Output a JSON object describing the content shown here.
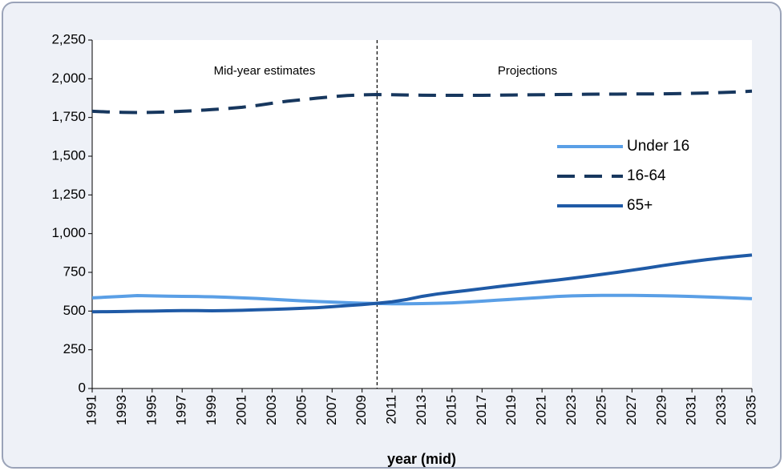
{
  "chart_data": {
    "type": "line",
    "x_label": "year (mid)",
    "annotations": [
      "Mid-year estimates",
      "Projections"
    ],
    "divider_x": 2010,
    "x": [
      1991,
      1992,
      1993,
      1994,
      1995,
      1996,
      1997,
      1998,
      1999,
      2000,
      2001,
      2002,
      2003,
      2004,
      2005,
      2006,
      2007,
      2008,
      2009,
      2010,
      2011,
      2012,
      2013,
      2014,
      2015,
      2016,
      2017,
      2018,
      2019,
      2020,
      2021,
      2022,
      2023,
      2024,
      2025,
      2026,
      2027,
      2028,
      2029,
      2030,
      2031,
      2032,
      2033,
      2034,
      2035
    ],
    "xlim": [
      1991,
      2035
    ],
    "xticks": [
      1991,
      1993,
      1995,
      1997,
      1999,
      2001,
      2003,
      2005,
      2007,
      2009,
      2011,
      2013,
      2015,
      2017,
      2019,
      2021,
      2023,
      2025,
      2027,
      2029,
      2031,
      2033,
      2035
    ],
    "ylim": [
      0,
      2250
    ],
    "yticks": [
      0,
      250,
      500,
      750,
      {
        "value": 1000,
        "label": "1,000"
      },
      {
        "value": 1250,
        "label": "1,250"
      },
      {
        "value": 1500,
        "label": "1,500"
      },
      {
        "value": 1750,
        "label": "1,750"
      },
      {
        "value": 2000,
        "label": "2,000"
      },
      {
        "value": 2250,
        "label": "2,250"
      }
    ],
    "grid": false,
    "legend": "right",
    "series": [
      {
        "name": "Under 16",
        "color": "#5a9fe6",
        "dash": false,
        "values": [
          585,
          590,
          595,
          600,
          598,
          596,
          595,
          594,
          592,
          589,
          585,
          581,
          576,
          571,
          566,
          562,
          558,
          554,
          551,
          549,
          547,
          547,
          548,
          550,
          553,
          558,
          564,
          570,
          576,
          582,
          588,
          594,
          598,
          600,
          601,
          601,
          601,
          600,
          599,
          597,
          594,
          591,
          588,
          584,
          580
        ]
      },
      {
        "name": "16-64",
        "color": "#17375e",
        "dash": true,
        "values": [
          1790,
          1786,
          1783,
          1782,
          1783,
          1786,
          1790,
          1795,
          1801,
          1808,
          1816,
          1828,
          1842,
          1855,
          1865,
          1875,
          1884,
          1892,
          1896,
          1898,
          1897,
          1895,
          1894,
          1893,
          1893,
          1893,
          1893,
          1894,
          1895,
          1896,
          1897,
          1898,
          1899,
          1900,
          1901,
          1901,
          1902,
          1902,
          1903,
          1904,
          1906,
          1908,
          1911,
          1915,
          1920
        ]
      },
      {
        "name": "65+",
        "color": "#1f5aa6",
        "dash": false,
        "values": [
          495,
          496,
          497,
          499,
          500,
          502,
          503,
          503,
          502,
          503,
          505,
          508,
          511,
          514,
          518,
          522,
          528,
          535,
          542,
          550,
          560,
          575,
          595,
          610,
          622,
          633,
          645,
          657,
          668,
          679,
          690,
          700,
          712,
          724,
          737,
          750,
          764,
          778,
          793,
          807,
          820,
          832,
          843,
          853,
          862
        ]
      }
    ]
  }
}
